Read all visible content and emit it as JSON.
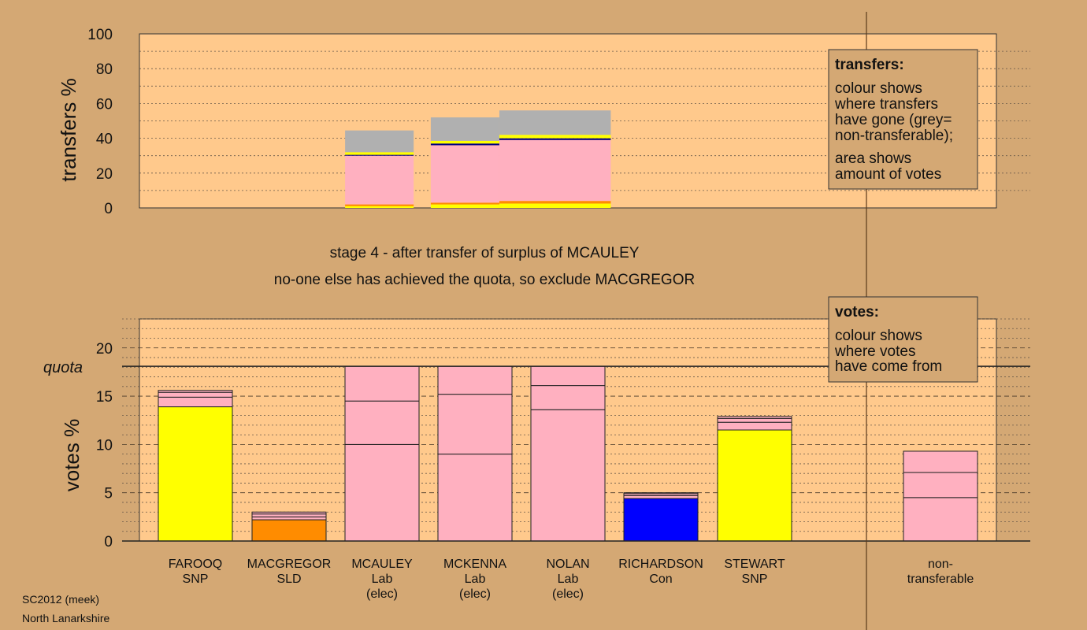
{
  "colors": {
    "background": "#d4a874",
    "plot_bg": "#ffc98c",
    "pink": "#ffb0c0",
    "yellow": "#ffff00",
    "orange": "#ff8c00",
    "blue": "#0000ff",
    "grey": "#b0b0b0",
    "navy": "#000080"
  },
  "stage_text": {
    "line1": "stage 4 - after transfer of surplus of MCAULEY",
    "line2": "no-one else has achieved the quota, so exclude MACGREGOR"
  },
  "footer": {
    "line1": "SC2012 (meek)",
    "line2": "North Lanarkshire"
  },
  "legend_transfers": {
    "title": "transfers:",
    "lines": [
      "colour shows",
      "where transfers",
      "have gone (grey=",
      "non-transferable);",
      "area shows",
      "amount of votes"
    ]
  },
  "legend_votes": {
    "title": "votes:",
    "lines": [
      "colour shows",
      "where votes",
      "have come from"
    ]
  },
  "chart_data": [
    {
      "type": "bar",
      "stacked": true,
      "name": "transfers",
      "ylabel": "transfers %",
      "ylim": [
        0,
        100
      ],
      "yticks": [
        0,
        20,
        40,
        60,
        80,
        100
      ],
      "grid": true,
      "bars": [
        {
          "x_from": 0.24,
          "x_to": 0.32,
          "segments": [
            {
              "value": 1,
              "color": "yellow"
            },
            {
              "value": 1,
              "color": "orange"
            },
            {
              "value": 28,
              "color": "pink"
            },
            {
              "value": 0.5,
              "color": "navy"
            },
            {
              "value": 1.5,
              "color": "yellow"
            },
            {
              "value": 12.5,
              "color": "grey"
            }
          ]
        },
        {
          "x_from": 0.34,
          "x_to": 0.42,
          "segments": [
            {
              "value": 2,
              "color": "yellow"
            },
            {
              "value": 1,
              "color": "orange"
            },
            {
              "value": 33,
              "color": "pink"
            },
            {
              "value": 1,
              "color": "navy"
            },
            {
              "value": 1.5,
              "color": "yellow"
            },
            {
              "value": 13.5,
              "color": "grey"
            }
          ]
        },
        {
          "x_from": 0.42,
          "x_to": 0.55,
          "segments": [
            {
              "value": 2.5,
              "color": "yellow"
            },
            {
              "value": 1.5,
              "color": "orange"
            },
            {
              "value": 35,
              "color": "pink"
            },
            {
              "value": 1,
              "color": "navy"
            },
            {
              "value": 2,
              "color": "yellow"
            },
            {
              "value": 14,
              "color": "grey"
            }
          ]
        }
      ]
    },
    {
      "type": "bar",
      "stacked": true,
      "name": "votes",
      "ylabel": "votes %",
      "ylim": [
        0,
        23
      ],
      "yticks": [
        0,
        5,
        10,
        15,
        20
      ],
      "quota": 18.1,
      "quota_label": "quota",
      "grid": true,
      "categories": [
        {
          "name": "FAROOQ",
          "party": "SNP",
          "note": ""
        },
        {
          "name": "MACGREGOR",
          "party": "SLD",
          "note": ""
        },
        {
          "name": "MCAULEY",
          "party": "Lab",
          "note": "(elec)"
        },
        {
          "name": "MCKENNA",
          "party": "Lab",
          "note": "(elec)"
        },
        {
          "name": "NOLAN",
          "party": "Lab",
          "note": "(elec)"
        },
        {
          "name": "RICHARDSON",
          "party": "Con",
          "note": ""
        },
        {
          "name": "STEWART",
          "party": "SNP",
          "note": ""
        },
        {
          "name": "non-",
          "party": "transferable",
          "note": ""
        }
      ],
      "bars": [
        [
          {
            "value": 13.9,
            "color": "yellow"
          },
          {
            "value": 1.0,
            "color": "pink"
          },
          {
            "value": 0.5,
            "color": "pink"
          },
          {
            "value": 0.2,
            "color": "pink"
          }
        ],
        [
          {
            "value": 2.2,
            "color": "orange"
          },
          {
            "value": 0.3,
            "color": "pink"
          },
          {
            "value": 0.3,
            "color": "pink"
          },
          {
            "value": 0.2,
            "color": "pink"
          }
        ],
        [
          {
            "value": 10.0,
            "color": "pink"
          },
          {
            "value": 4.5,
            "color": "pink"
          },
          {
            "value": 3.6,
            "color": "pink"
          }
        ],
        [
          {
            "value": 9.0,
            "color": "pink"
          },
          {
            "value": 6.2,
            "color": "pink"
          },
          {
            "value": 2.9,
            "color": "pink"
          }
        ],
        [
          {
            "value": 13.6,
            "color": "pink"
          },
          {
            "value": 2.5,
            "color": "pink"
          },
          {
            "value": 2.0,
            "color": "pink"
          }
        ],
        [
          {
            "value": 4.4,
            "color": "blue"
          },
          {
            "value": 0.3,
            "color": "pink"
          },
          {
            "value": 0.2,
            "color": "pink"
          },
          {
            "value": 0.1,
            "color": "pink"
          }
        ],
        [
          {
            "value": 11.5,
            "color": "yellow"
          },
          {
            "value": 0.8,
            "color": "pink"
          },
          {
            "value": 0.4,
            "color": "pink"
          },
          {
            "value": 0.2,
            "color": "pink"
          }
        ],
        [
          {
            "value": 4.5,
            "color": "pink"
          },
          {
            "value": 2.6,
            "color": "pink"
          },
          {
            "value": 2.2,
            "color": "pink"
          }
        ]
      ]
    }
  ]
}
